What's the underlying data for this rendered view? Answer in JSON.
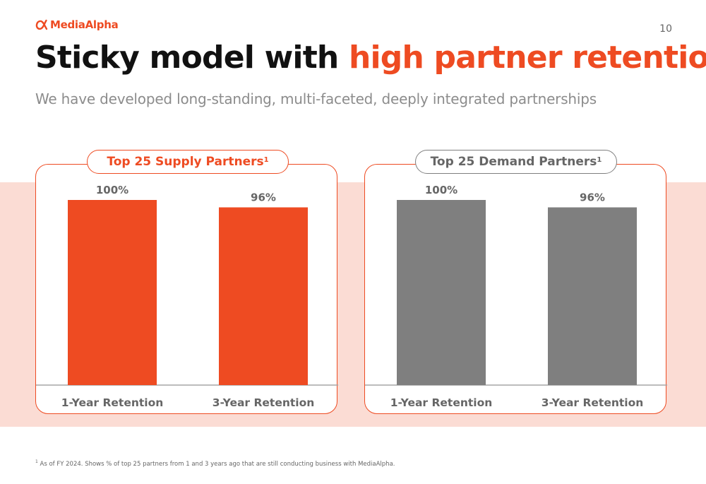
{
  "logo": {
    "text": "MediaAlpha"
  },
  "page_number": "10",
  "title": {
    "part1": "Sticky model with ",
    "accent": "high partner retention"
  },
  "subtitle": "We have developed long-standing, multi-faceted, deeply integrated partnerships",
  "colors": {
    "accent": "#ee4b22",
    "gray_bar": "#7f7f7f",
    "band": "#fbdcd4"
  },
  "chart_data": [
    {
      "type": "bar",
      "title": "Top 25 Supply Partners",
      "title_sup": "1",
      "categories": [
        "1-Year Retention",
        "3-Year Retention"
      ],
      "values": [
        100,
        96
      ],
      "value_labels": [
        "100%",
        "96%"
      ],
      "color": "#ee4b22",
      "ylim": [
        0,
        100
      ]
    },
    {
      "type": "bar",
      "title": "Top 25 Demand Partners",
      "title_sup": "1",
      "categories": [
        "1-Year Retention",
        "3-Year Retention"
      ],
      "values": [
        100,
        96
      ],
      "value_labels": [
        "100%",
        "96%"
      ],
      "color": "#7f7f7f",
      "ylim": [
        0,
        100
      ]
    }
  ],
  "footnote": {
    "marker": "1",
    "text": " As of FY 2024. Shows % of top 25 partners from 1 and 3 years ago that are still conducting business with MediaAlpha."
  }
}
